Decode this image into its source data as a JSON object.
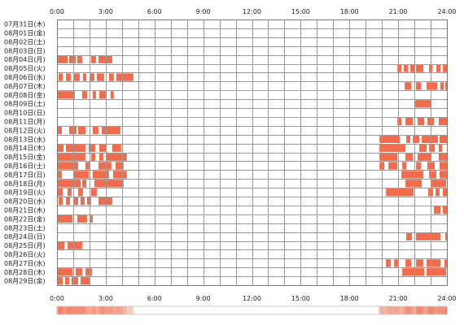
{
  "chart_data": {
    "type": "heatmap",
    "title": "",
    "xlabel": "",
    "ylabel": "",
    "x_range_hours": [
      0,
      24
    ],
    "x_ticks": [
      "0:00",
      "3:00",
      "6:00",
      "9:00",
      "12:00",
      "15:00",
      "18:00",
      "21:00",
      "24:00"
    ],
    "x_ticks_bottom": [
      "0:00",
      "3:00",
      "6:00",
      "9:00",
      "12:00",
      "15:00",
      "18:00",
      "21:00",
      "24:00"
    ],
    "grid": true,
    "grid_minor_hours": 1,
    "color": "#f06c4c",
    "summary_bar_color": "#f06c4c",
    "rows": [
      {
        "label": "07月31日(木)",
        "spans": []
      },
      {
        "label": "08月01日(金)",
        "spans": []
      },
      {
        "label": "08月02日(土)",
        "spans": []
      },
      {
        "label": "08月03日(日)",
        "spans": []
      },
      {
        "label": "08月04日(月)",
        "spans": [
          [
            0.05,
            0.65
          ],
          [
            0.75,
            1.15
          ],
          [
            1.25,
            1.55
          ],
          [
            2.1,
            2.4
          ],
          [
            2.55,
            3.4
          ]
        ]
      },
      {
        "label": "08月05日(火)",
        "spans": [
          [
            20.95,
            21.2
          ],
          [
            21.35,
            21.6
          ],
          [
            21.75,
            22.0
          ],
          [
            22.1,
            22.55
          ],
          [
            22.9,
            23.1
          ],
          [
            23.35,
            23.6
          ],
          [
            23.75,
            24.0
          ]
        ]
      },
      {
        "label": "08月06日(水)",
        "spans": [
          [
            0.1,
            0.35
          ],
          [
            0.55,
            0.85
          ],
          [
            1.05,
            1.4
          ],
          [
            1.6,
            1.8
          ],
          [
            2.0,
            2.3
          ],
          [
            2.45,
            2.9
          ],
          [
            3.2,
            3.5
          ],
          [
            3.65,
            4.7
          ]
        ]
      },
      {
        "label": "08月07日(木)",
        "spans": [
          [
            21.4,
            21.8
          ],
          [
            22.1,
            22.4
          ],
          [
            22.75,
            23.4
          ],
          [
            23.6,
            23.8
          ],
          [
            23.9,
            24.0
          ]
        ]
      },
      {
        "label": "08月08日(金)",
        "spans": [
          [
            0.05,
            1.1
          ],
          [
            1.55,
            1.85
          ],
          [
            2.2,
            2.4
          ],
          [
            2.6,
            3.0
          ],
          [
            3.3,
            3.5
          ]
        ]
      },
      {
        "label": "08月09日(土)",
        "spans": [
          [
            22.05,
            23.05
          ]
        ]
      },
      {
        "label": "08月10日(日)",
        "spans": []
      },
      {
        "label": "08月11日(月)",
        "spans": [
          [
            20.95,
            21.2
          ],
          [
            21.45,
            21.9
          ],
          [
            22.2,
            22.6
          ],
          [
            22.8,
            23.2
          ],
          [
            23.5,
            24.0
          ]
        ]
      },
      {
        "label": "08月12日(火)",
        "spans": [
          [
            0.05,
            0.3
          ],
          [
            0.75,
            1.2
          ],
          [
            1.3,
            1.75
          ],
          [
            2.2,
            2.55
          ],
          [
            2.75,
            3.9
          ]
        ]
      },
      {
        "label": "08月13日(水)",
        "spans": [
          [
            19.85,
            21.1
          ],
          [
            21.5,
            21.75
          ],
          [
            21.9,
            22.3
          ],
          [
            22.45,
            23.45
          ],
          [
            23.55,
            24.0
          ]
        ]
      },
      {
        "label": "08月14日(木)",
        "spans": [
          [
            0.05,
            0.4
          ],
          [
            0.55,
            1.75
          ],
          [
            1.95,
            2.35
          ],
          [
            2.6,
            3.05
          ],
          [
            3.4,
            3.95
          ],
          [
            19.85,
            21.45
          ],
          [
            22.3,
            22.75
          ],
          [
            22.9,
            23.25
          ],
          [
            23.5,
            23.7
          ]
        ]
      },
      {
        "label": "08月15日(金)",
        "spans": [
          [
            0.05,
            1.75
          ],
          [
            2.1,
            2.35
          ],
          [
            2.6,
            2.85
          ],
          [
            3.05,
            4.3
          ],
          [
            19.85,
            20.95
          ],
          [
            21.45,
            21.9
          ],
          [
            22.2,
            23.05
          ],
          [
            23.5,
            24.0
          ]
        ]
      },
      {
        "label": "08月16日(土)",
        "spans": [
          [
            0.05,
            1.3
          ],
          [
            1.75,
            2.0
          ],
          [
            2.55,
            3.35
          ],
          [
            3.6,
            4.1
          ],
          [
            19.85,
            20.15
          ],
          [
            20.4,
            20.95
          ],
          [
            21.25,
            21.5
          ],
          [
            22.1,
            22.4
          ],
          [
            22.8,
            23.25
          ],
          [
            23.55,
            24.0
          ]
        ]
      },
      {
        "label": "08月17日(日)",
        "spans": [
          [
            0.05,
            0.3
          ],
          [
            1.0,
            1.95
          ],
          [
            2.2,
            3.2
          ],
          [
            3.45,
            4.3
          ],
          [
            21.2,
            22.55
          ],
          [
            22.9,
            23.35
          ],
          [
            23.55,
            24.0
          ]
        ]
      },
      {
        "label": "08月18日(月)",
        "spans": [
          [
            0.05,
            1.45
          ],
          [
            1.55,
            1.8
          ],
          [
            2.3,
            4.1
          ],
          [
            21.45,
            22.45
          ],
          [
            23.0,
            23.95
          ]
        ]
      },
      {
        "label": "08月19日(火)",
        "spans": [
          [
            0.05,
            0.35
          ],
          [
            0.65,
            0.9
          ],
          [
            1.3,
            1.6
          ],
          [
            2.1,
            2.45
          ],
          [
            20.25,
            21.95
          ],
          [
            22.85,
            23.15
          ],
          [
            23.3,
            23.55
          ],
          [
            23.75,
            24.0
          ]
        ]
      },
      {
        "label": "08月20日(水)",
        "spans": [
          [
            0.1,
            0.35
          ],
          [
            0.55,
            0.8
          ],
          [
            1.05,
            1.3
          ],
          [
            1.45,
            1.7
          ],
          [
            1.85,
            2.1
          ],
          [
            2.55,
            3.4
          ]
        ]
      },
      {
        "label": "08月21日(木)",
        "spans": [
          [
            23.2,
            23.6
          ],
          [
            23.75,
            24.0
          ]
        ]
      },
      {
        "label": "08月22日(金)",
        "spans": [
          [
            0.05,
            0.95
          ],
          [
            1.25,
            1.85
          ],
          [
            2.0,
            2.2
          ]
        ]
      },
      {
        "label": "08月23日(土)",
        "spans": []
      },
      {
        "label": "08月24日(日)",
        "spans": [
          [
            21.5,
            21.85
          ],
          [
            22.1,
            23.6
          ],
          [
            23.9,
            24.0
          ]
        ]
      },
      {
        "label": "08月25日(月)",
        "spans": [
          [
            0.05,
            0.45
          ],
          [
            0.65,
            1.55
          ]
        ]
      },
      {
        "label": "08月26日(火)",
        "spans": []
      },
      {
        "label": "08月27日(水)",
        "spans": [
          [
            20.25,
            20.55
          ],
          [
            20.75,
            21.0
          ],
          [
            21.45,
            21.8
          ],
          [
            22.1,
            22.55
          ],
          [
            22.75,
            23.6
          ],
          [
            23.85,
            24.0
          ]
        ]
      },
      {
        "label": "08月28日(木)",
        "spans": [
          [
            0.05,
            0.95
          ],
          [
            1.15,
            1.55
          ],
          [
            1.75,
            2.15
          ],
          [
            21.25,
            22.6
          ],
          [
            22.75,
            23.95
          ]
        ]
      },
      {
        "label": "08月29日(金)",
        "spans": [
          [
            0.05,
            0.35
          ],
          [
            0.5,
            0.75
          ],
          [
            0.9,
            1.3
          ],
          [
            1.45,
            2.0
          ]
        ]
      }
    ]
  }
}
